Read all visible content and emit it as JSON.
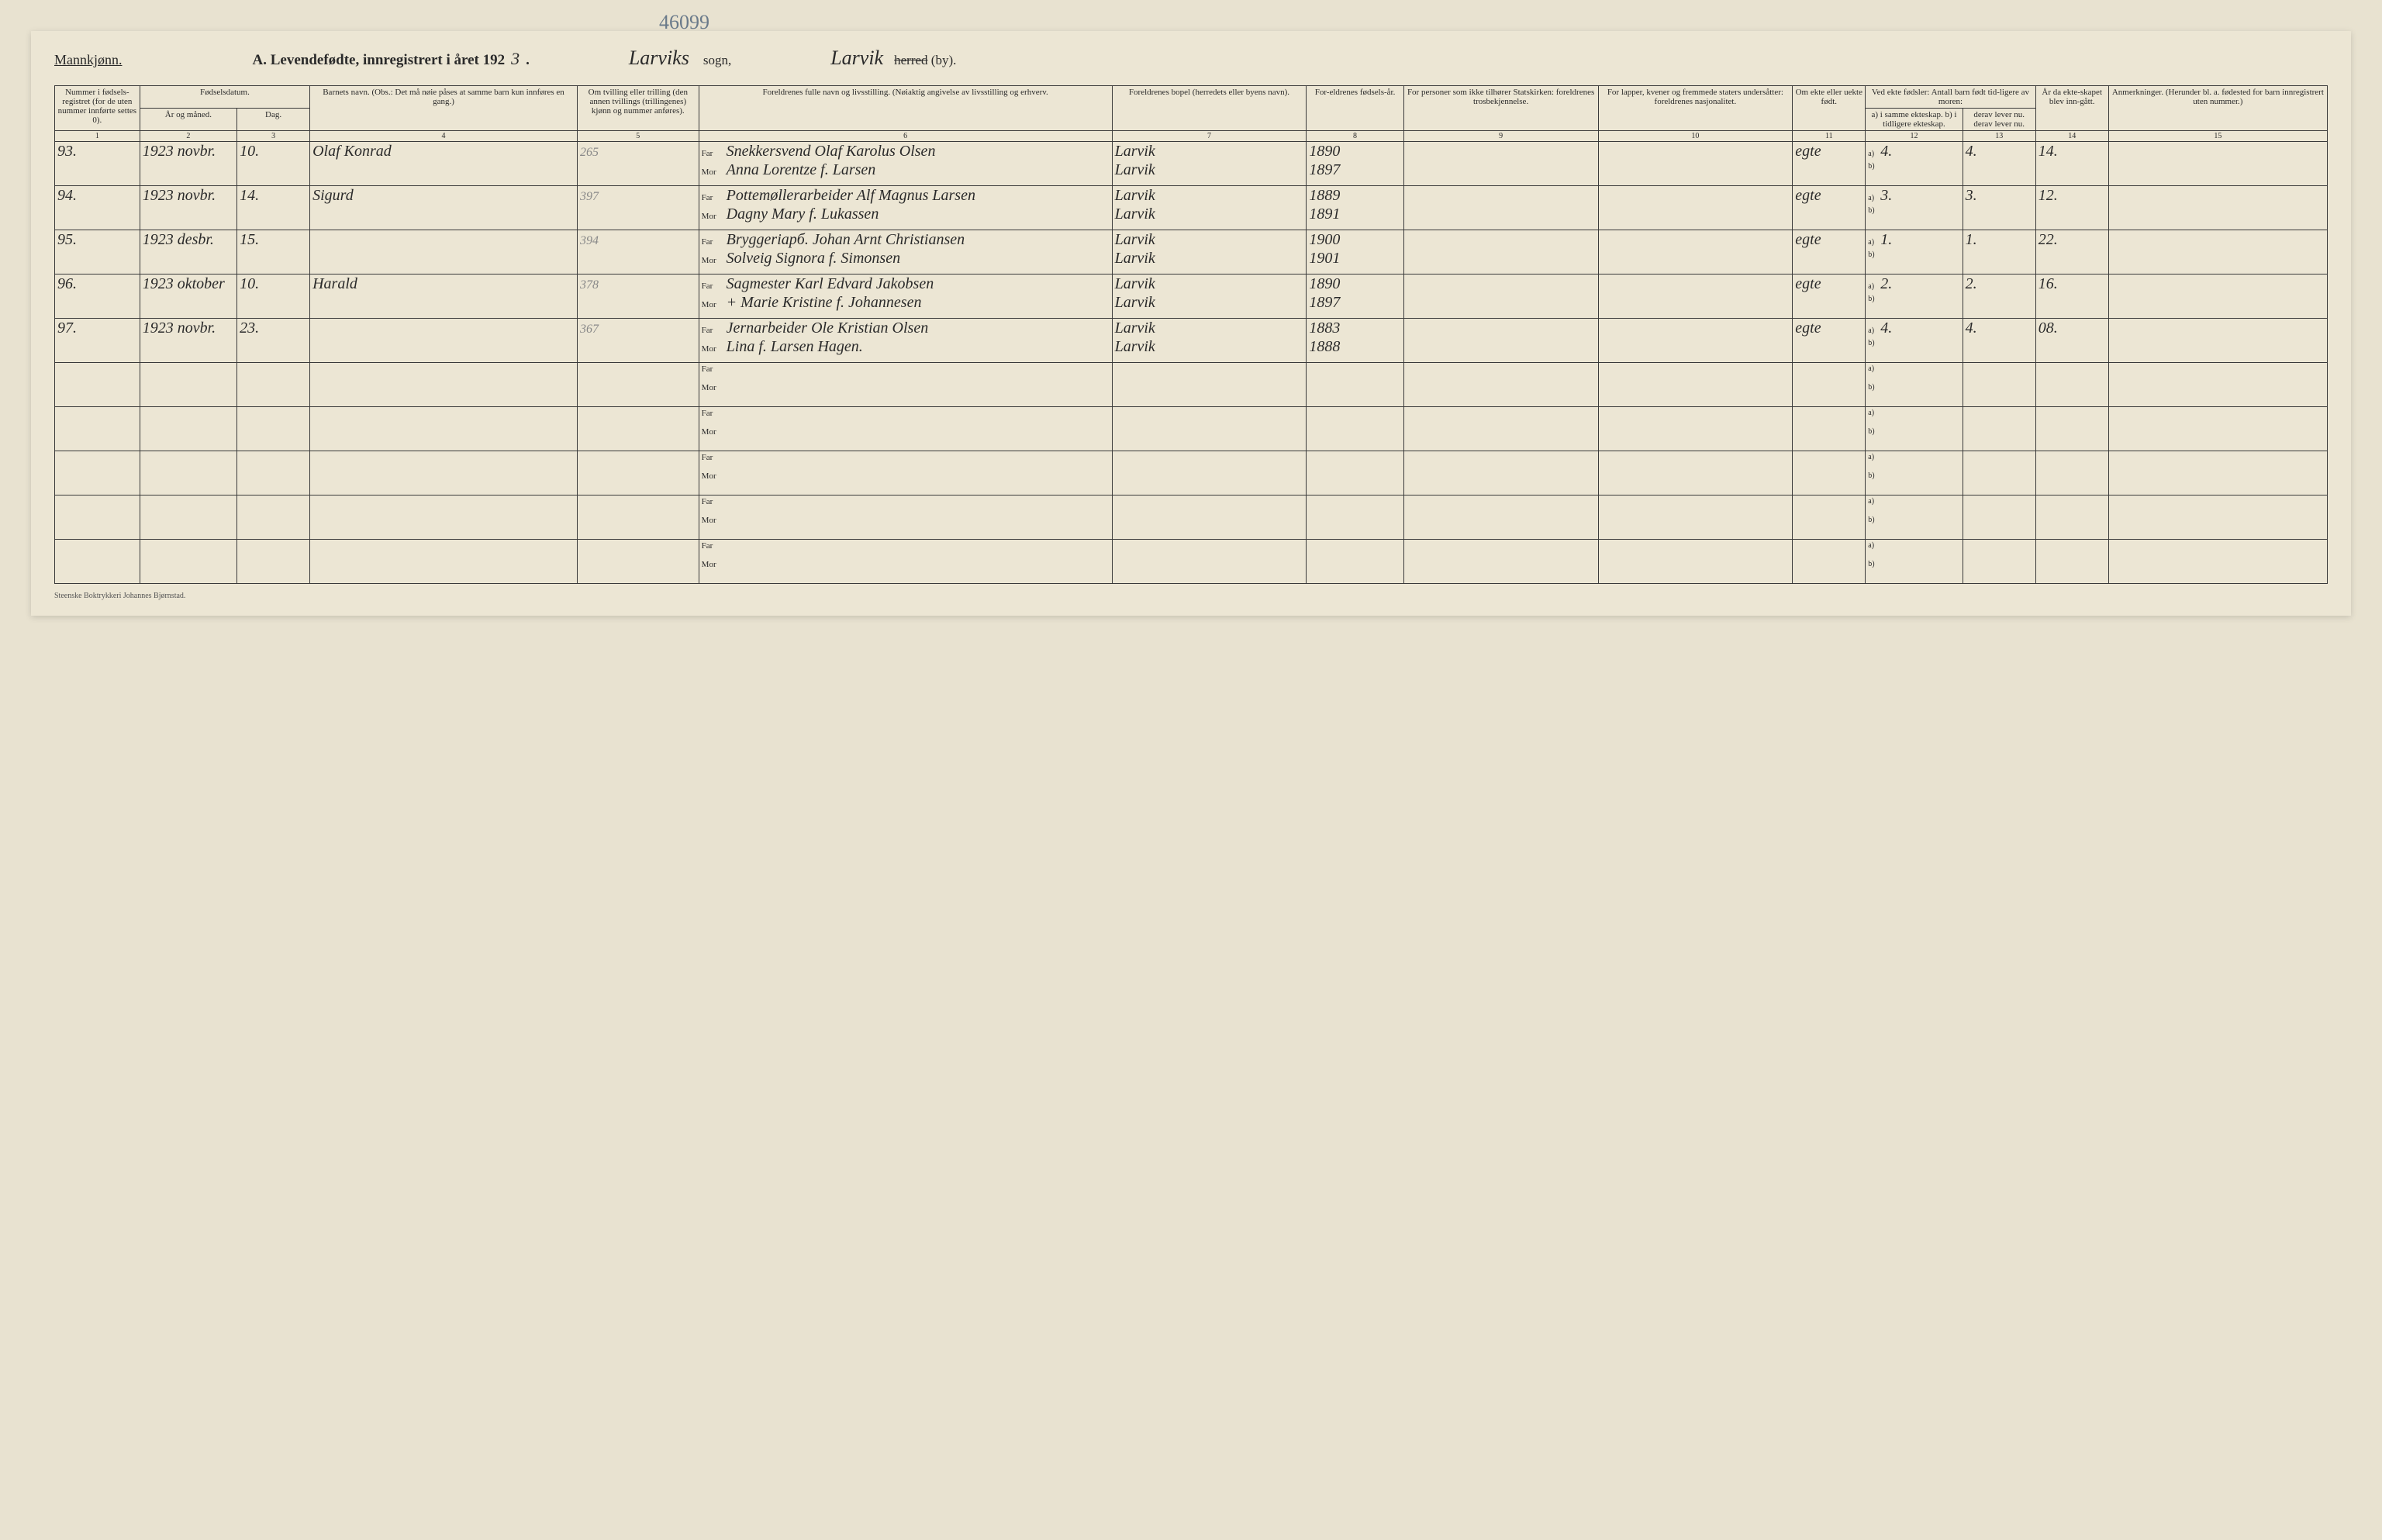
{
  "header": {
    "left": "Mannkjønn.",
    "title_prefix": "A. Levendefødte, innregistrert i året 192",
    "year_suffix": "3",
    "sogn_name": "Larviks",
    "sogn_label": "sogn,",
    "by_name": "Larvik",
    "by_label_strike": "herred",
    "by_label": "(by).",
    "archive_number": "46099"
  },
  "columns": {
    "c1": "Nummer i fødsels-registret (for de uten nummer innførte settes 0).",
    "c2_group": "Fødselsdatum.",
    "c2": "År og måned.",
    "c3": "Dag.",
    "c4": "Barnets navn. (Obs.: Det må nøie påses at samme barn kun innføres en gang.)",
    "c5": "Om tvilling eller trilling (den annen tvillings (trillingenes) kjønn og nummer anføres).",
    "c6": "Foreldrenes fulle navn og livsstilling. (Nøiaktig angivelse av livsstilling og erhverv.",
    "c7": "Foreldrenes bopel (herredets eller byens navn).",
    "c8": "For-eldrenes fødsels-år.",
    "c9": "For personer som ikke tilhører Statskirken: foreldrenes trosbekjennelse.",
    "c10": "For lapper, kvener og fremmede staters undersåtter: foreldrenes nasjonalitet.",
    "c11": "Om ekte eller uekte født.",
    "c12_group": "Ved ekte fødsler: Antall barn født tid-ligere av moren:",
    "c12": "a) i samme ekteskap. b) i tidligere ekteskap.",
    "c13": "derav lever nu. derav lever nu.",
    "c14": "År da ekte-skapet blev inn-gått.",
    "c15": "Anmerkninger. (Herunder bl. a. fødested for barn innregistrert uten nummer.)"
  },
  "colnums": [
    "1",
    "2",
    "3",
    "4",
    "5",
    "6",
    "7",
    "8",
    "9",
    "10",
    "11",
    "12",
    "13",
    "14",
    "15"
  ],
  "labels": {
    "far": "Far",
    "mor": "Mor",
    "a": "a)",
    "b": "b)"
  },
  "rows": [
    {
      "num": "93.",
      "year_month": "1923 novbr.",
      "day": "10.",
      "child_name": "Olaf Konrad",
      "twin": "265",
      "far_occ_name": "Snekkersvend Olaf Karolus Olsen",
      "mor_name": "Anna Lorentze f. Larsen",
      "far_place": "Larvik",
      "mor_place": "Larvik",
      "far_year": "1890",
      "mor_year": "1897",
      "ekte": "egte",
      "a_val": "4.",
      "a_lever": "4.",
      "b_val": "",
      "marriage_year": "14."
    },
    {
      "num": "94.",
      "year_month": "1923 novbr.",
      "day": "14.",
      "child_name": "Sigurd",
      "twin": "397",
      "far_occ_name": "Pottemøllerarbeider Alf Magnus Larsen",
      "mor_name": "Dagny Mary f. Lukassen",
      "far_place": "Larvik",
      "mor_place": "Larvik",
      "far_year": "1889",
      "mor_year": "1891",
      "ekte": "egte",
      "a_val": "3.",
      "a_lever": "3.",
      "b_val": "",
      "marriage_year": "12."
    },
    {
      "num": "95.",
      "year_month": "1923 desbr.",
      "day": "15.",
      "child_name": "",
      "twin": "394",
      "far_occ_name": "Bryggeriарб. Johan Arnt Christiansen",
      "mor_name": "Solveig Signora f. Simonsen",
      "far_place": "Larvik",
      "mor_place": "Larvik",
      "far_year": "1900",
      "mor_year": "1901",
      "ekte": "egte",
      "a_val": "1.",
      "a_lever": "1.",
      "b_val": "",
      "marriage_year": "22."
    },
    {
      "num": "96.",
      "year_month": "1923 oktober",
      "day": "10.",
      "child_name": "Harald",
      "twin": "378",
      "far_occ_name": "Sagmester Karl Edvard Jakobsen",
      "mor_name": "+ Marie Kristine f. Johannesen",
      "far_place": "Larvik",
      "mor_place": "Larvik",
      "far_year": "1890",
      "mor_year": "1897",
      "ekte": "egte",
      "a_val": "2.",
      "a_lever": "2.",
      "b_val": "",
      "marriage_year": "16."
    },
    {
      "num": "97.",
      "year_month": "1923 novbr.",
      "day": "23.",
      "child_name": "",
      "twin": "367",
      "far_occ_name": "Jernarbeider Ole Kristian Olsen",
      "mor_name": "Lina f. Larsen Hagen.",
      "far_place": "Larvik",
      "mor_place": "Larvik",
      "far_year": "1883",
      "mor_year": "1888",
      "ekte": "egte",
      "a_val": "4.",
      "a_lever": "4.",
      "b_val": "",
      "marriage_year": "08."
    },
    {
      "empty": true
    },
    {
      "empty": true
    },
    {
      "empty": true
    },
    {
      "empty": true
    },
    {
      "empty": true
    }
  ],
  "footer": "Steenske Boktrykkeri Johannes Bjørnstad.",
  "style": {
    "page_bg": "#ece6d4",
    "body_bg": "#e8e2d0",
    "border_color": "#3a3a3a",
    "cursive_color": "#2a2a2a",
    "archive_color": "#6a7a8a",
    "header_fontsize": 19,
    "cursive_fontsize": 20,
    "cell_fontsize": 11
  }
}
